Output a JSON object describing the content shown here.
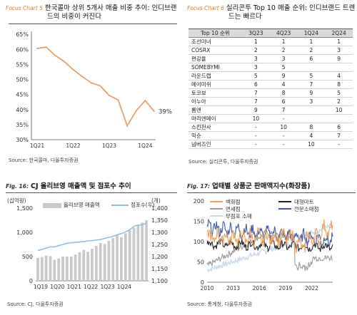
{
  "panels": [
    {
      "tag": "Focus Chart 5",
      "title_line1": "한국콜마 상위 5개사 매출 비중 추이: 인디브랜",
      "title_line2": "드의 비중이 커진다",
      "source": "Source: 한국콜마, 다올투자증권"
    },
    {
      "tag": "Focus Chart 6",
      "title_line1": "실리콘투 Top 10 매출 순위: 인디브랜드 트렌",
      "title_line2": "드는 빠르다",
      "source": "Source: 실리콘투, 다올투자증권"
    },
    {
      "tag": "Fig. 16:",
      "title_line1": "CJ 올리브영 매출액 및 점포수 추이",
      "source": "Source: CJ, 다올투자증권"
    },
    {
      "tag": "Fig. 17:",
      "title_line1": "업태별 상품군 판매액지수(화장품)",
      "source": "Source: 통계청, 다올투자증권"
    }
  ],
  "chart_data": [
    {
      "type": "line",
      "x_ticks": [
        "1Q21",
        "1Q22",
        "1Q23",
        "1Q24"
      ],
      "y_ticks": [
        "65%",
        "60%",
        "55%",
        "50%",
        "45%",
        "40%",
        "35%",
        "30%"
      ],
      "ylim": [
        30,
        66
      ],
      "series": [
        {
          "values": [
            60.3,
            60.8,
            58.0,
            56.0,
            53.3,
            51.0,
            48.9,
            47.9,
            44.7,
            43.2,
            34.6,
            39.6,
            43.0,
            39.4
          ]
        }
      ],
      "end_label": "39%",
      "color": "#e8a06b"
    },
    {
      "type": "table",
      "columns": [
        "Top 10 순위",
        "3Q23",
        "4Q23",
        "1Q24",
        "2Q24"
      ],
      "rows": [
        [
          "조선미녀",
          "1",
          "1",
          "1",
          "1"
        ],
        [
          "COSRX",
          "2",
          "2",
          "2",
          "3"
        ],
        [
          "편강율",
          "3",
          "3",
          "6",
          "9"
        ],
        [
          "SOMEBYMI",
          "3",
          "5",
          "",
          ""
        ],
        [
          "라운드랩",
          "5",
          "9",
          "5",
          "4"
        ],
        [
          "메이미쉬",
          "6",
          "4",
          "7",
          "8"
        ],
        [
          "토코보",
          "7",
          "8",
          "9",
          "5"
        ],
        [
          "아누아",
          "7",
          "6",
          "3",
          "2"
        ],
        [
          "롬앤",
          "9",
          "7",
          "",
          "10"
        ],
        [
          "마리엔메이",
          "10",
          "-",
          "",
          ""
        ],
        [
          "스킨천사",
          "-",
          "10",
          "8",
          "6"
        ],
        [
          "믹순",
          "-",
          "-",
          "4",
          "7"
        ],
        [
          "넘버즈인",
          "-",
          "-",
          "10",
          "-"
        ]
      ]
    },
    {
      "type": "bar",
      "unit_left": "(십억원)",
      "unit_right": "(개)",
      "legend": [
        "올리브영 매출액",
        "점포수(우)"
      ],
      "x_ticks": [
        "1Q19",
        "1Q20",
        "1Q21",
        "1Q22",
        "1Q23",
        "1Q24"
      ],
      "y_left_ticks": [
        "1,500",
        "1,000",
        "500",
        "0"
      ],
      "y_right_ticks": [
        "1,400",
        "1,350",
        "1,300",
        "1,250",
        "1,200",
        "1,150",
        "1,100"
      ],
      "ylim_left": [
        0,
        1500
      ],
      "ylim_right": [
        1100,
        1400
      ],
      "bars": [
        470,
        490,
        520,
        510,
        430,
        460,
        500,
        500,
        500,
        540,
        590,
        640,
        600,
        660,
        720,
        780,
        760,
        820,
        880,
        940,
        900,
        980,
        1040,
        1100,
        1150,
        1200,
        1250
      ],
      "stores": [
        1225,
        1230,
        1235,
        1240,
        1240,
        1245,
        1250,
        1255,
        1257,
        1259,
        1260,
        1262,
        1265,
        1266,
        1268,
        1270,
        1275,
        1279,
        1283,
        1290,
        1295,
        1302,
        1310,
        1325,
        1330,
        1331,
        1338
      ],
      "bar_color": "#c9c9c9",
      "line_color": "#8fc0e6"
    },
    {
      "type": "line",
      "x_ticks": [
        "2010",
        "2013",
        "2016",
        "2019",
        "2022"
      ],
      "y_ticks": [
        "200",
        "150",
        "100",
        "50",
        "0"
      ],
      "ylim": [
        0,
        200
      ],
      "series": [
        {
          "name": "백화점",
          "color": "#f0a35a"
        },
        {
          "name": "대형마트",
          "color": "#222222"
        },
        {
          "name": "면세점",
          "color": "#9a9a9a"
        },
        {
          "name": "전문소매점",
          "color": "#3d5aa8"
        },
        {
          "name": "무점포 소매",
          "color": "#c9d9ee"
        }
      ]
    }
  ]
}
